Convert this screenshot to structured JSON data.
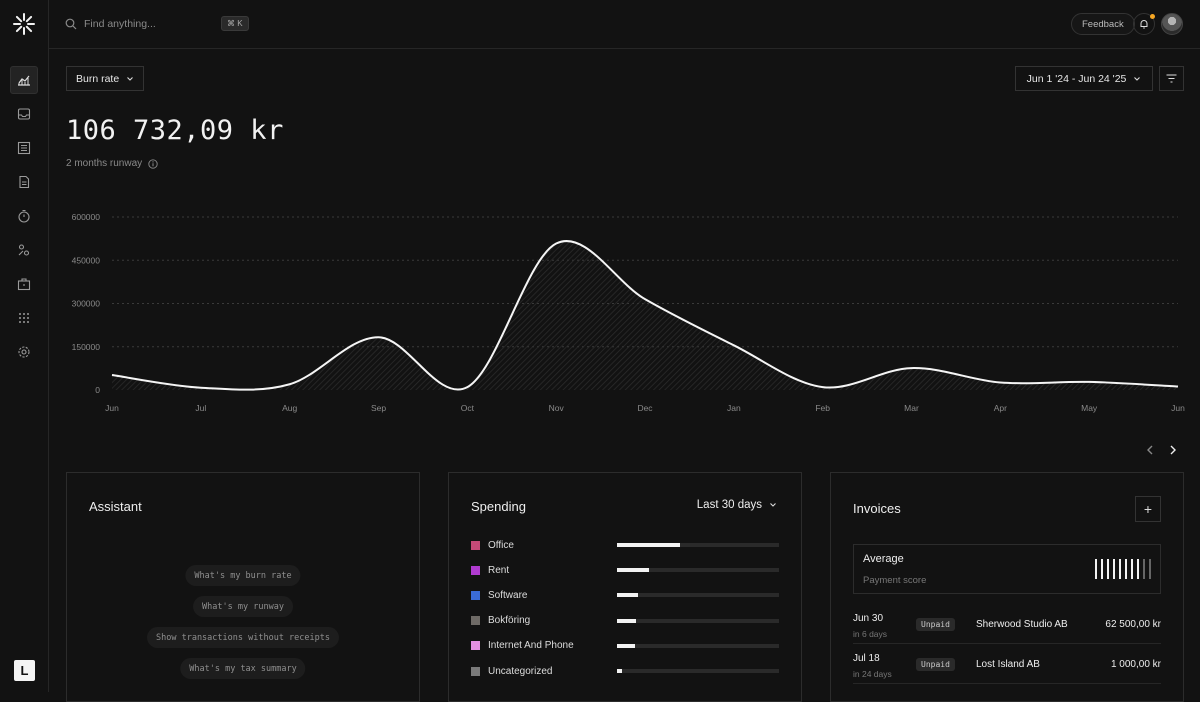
{
  "header": {
    "search_placeholder": "Find anything...",
    "shortcut": "⌘ K",
    "feedback_label": "Feedback"
  },
  "sidebar": {
    "items": [
      {
        "icon": "chart-icon",
        "active": true
      },
      {
        "icon": "inbox-icon"
      },
      {
        "icon": "transactions-icon"
      },
      {
        "icon": "invoice-icon"
      },
      {
        "icon": "tracker-icon"
      },
      {
        "icon": "customers-icon"
      },
      {
        "icon": "vault-icon"
      },
      {
        "icon": "apps-icon"
      },
      {
        "icon": "settings-icon"
      }
    ],
    "team_initial": "L"
  },
  "overview": {
    "metric_select": "Burn rate",
    "date_range": "Jun 1 '24 - Jun 24 '25",
    "amount": "106 732,09 kr",
    "runway": "2 months runway"
  },
  "chart_data": {
    "type": "area",
    "x": [
      "Jun",
      "Jul",
      "Aug",
      "Sep",
      "Oct",
      "Nov",
      "Dec",
      "Jan",
      "Feb",
      "Mar",
      "Apr",
      "May",
      "Jun"
    ],
    "values": [
      52000,
      8000,
      20000,
      183000,
      10000,
      508000,
      315000,
      155000,
      10000,
      76000,
      26000,
      28000,
      12000
    ],
    "y_ticks": [
      "600000",
      "450000",
      "300000",
      "150000",
      "0"
    ],
    "ylim": [
      0,
      600000
    ],
    "grid": true
  },
  "assistant": {
    "title": "Assistant",
    "suggestions": [
      "What's my burn rate",
      "What's my runway",
      "Show transactions without receipts",
      "What's my tax summary"
    ]
  },
  "spending": {
    "title": "Spending",
    "period": "Last 30 days",
    "categories": [
      {
        "label": "Office",
        "color": "#c44a78",
        "share": 0.39
      },
      {
        "label": "Rent",
        "color": "#b03bd0",
        "share": 0.2
      },
      {
        "label": "Software",
        "color": "#3a6bd6",
        "share": 0.13
      },
      {
        "label": "Bokföring",
        "color": "#6e6a66",
        "share": 0.12
      },
      {
        "label": "Internet And Phone",
        "color": "#e28fe0",
        "share": 0.11
      },
      {
        "label": "Uncategorized",
        "color": "#7a7a7a",
        "share": 0.03
      }
    ]
  },
  "invoices": {
    "title": "Invoices",
    "add_label": "+",
    "score_title": "Average",
    "score_subtitle": "Payment score",
    "score": {
      "filled": 8,
      "total": 10
    },
    "rows": [
      {
        "date": "Jun 30",
        "due": "in 6 days",
        "status": "Unpaid",
        "customer": "Sherwood Studio AB",
        "amount": "62 500,00 kr"
      },
      {
        "date": "Jul 18",
        "due": "in 24 days",
        "status": "Unpaid",
        "customer": "Lost Island AB",
        "amount": "1 000,00 kr"
      }
    ]
  }
}
